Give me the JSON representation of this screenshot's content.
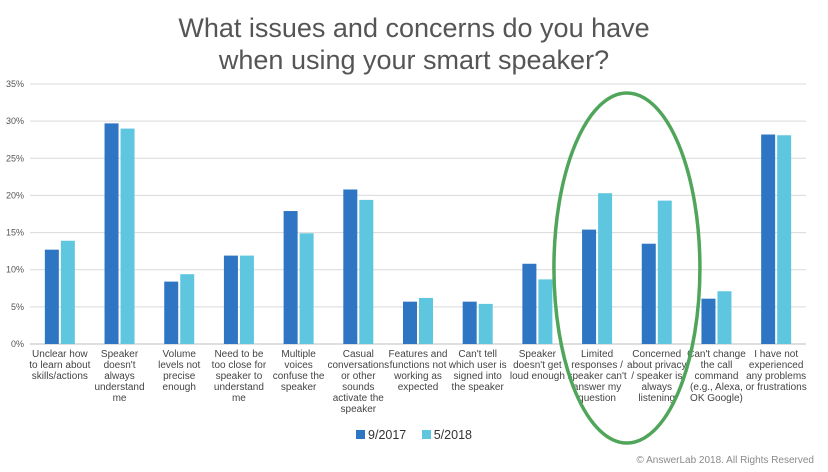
{
  "title_lines": [
    "What issues and concerns do you have",
    "when using your smart speaker?"
  ],
  "copyright": "© AnswerLab 2018. All Rights Reserved",
  "colors": {
    "series_a": "#2e75c4",
    "series_b": "#5ec7df",
    "annotation": "#4fa55a",
    "axis_text": "#555555",
    "grid": "#d9d9d9"
  },
  "chart_data": {
    "type": "bar",
    "title": "What issues and concerns do you have when using your smart speaker?",
    "categories": [
      [
        "Unclear how",
        "to learn about",
        "skills/actions"
      ],
      [
        "Speaker",
        "doesn't",
        "always",
        "understand",
        "me"
      ],
      [
        "Volume",
        "levels not",
        "precise",
        "enough"
      ],
      [
        "Need to be",
        "too close for",
        "speaker to",
        "understand",
        "me"
      ],
      [
        "Multiple",
        "voices",
        "confuse the",
        "speaker"
      ],
      [
        "Casual",
        "conversations",
        "or other",
        "sounds",
        "activate the",
        "speaker"
      ],
      [
        "Features and",
        "functions not",
        "working as",
        "expected"
      ],
      [
        "Can't tell",
        "which user is",
        "signed into",
        "the speaker"
      ],
      [
        "Speaker",
        "doesn't get",
        "loud enough"
      ],
      [
        "Limited",
        "responses /",
        "speaker can't",
        "answer my",
        "question"
      ],
      [
        "Concerned",
        "about privacy",
        "/ speaker is",
        "always",
        "listening"
      ],
      [
        "Can't change",
        "the call",
        "command",
        "(e.g., Alexa,",
        "OK Google)"
      ],
      [
        "I have not",
        "experienced",
        "any problems",
        "or frustrations"
      ]
    ],
    "series": [
      {
        "name": "9/2017",
        "values": [
          12.7,
          29.7,
          8.4,
          11.9,
          17.9,
          20.8,
          5.7,
          5.7,
          10.8,
          15.4,
          13.5,
          6.1,
          28.2
        ]
      },
      {
        "name": "5/2018",
        "values": [
          13.9,
          29.0,
          9.4,
          11.9,
          14.9,
          19.4,
          6.2,
          5.4,
          8.7,
          20.3,
          19.3,
          7.1,
          28.1
        ]
      }
    ],
    "ylim": [
      0,
      35
    ],
    "yticks": [
      0,
      5,
      10,
      15,
      20,
      25,
      30,
      35
    ],
    "ytick_labels": [
      "0%",
      "5%",
      "10%",
      "15%",
      "20%",
      "25%",
      "30%",
      "35%"
    ],
    "grid": true,
    "legend": "bottom-center",
    "annotation": "green ellipse circling 'Limited responses / speaker can't answer my question' and 'Concerned about privacy / speaker is always listening'"
  }
}
